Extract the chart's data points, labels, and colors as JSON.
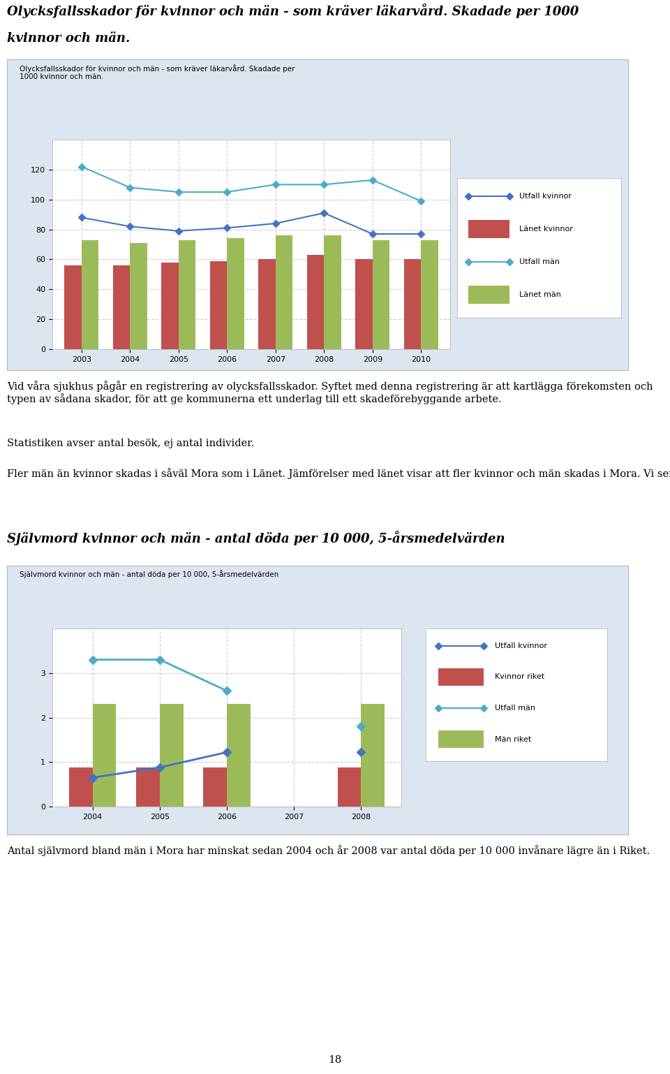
{
  "page_title1_line1": "Olycksfallsskador för kvinnor och män - som kräver läkarvård. Skadade per 1000",
  "page_title1_line2": "kvinnor och män.",
  "chart1_title": "Olycksfallsskador för kvinnor och män - som kräver läkarvård. Skadade per\n1000 kvinnor och män.",
  "chart1_years": [
    2003,
    2004,
    2005,
    2006,
    2007,
    2008,
    2009,
    2010
  ],
  "chart1_utfall_kvinnor": [
    88,
    82,
    79,
    81,
    84,
    91,
    77,
    77
  ],
  "chart1_lanet_kvinnor": [
    56,
    56,
    58,
    59,
    60,
    63,
    60,
    60
  ],
  "chart1_utfall_man": [
    122,
    108,
    105,
    105,
    110,
    110,
    113,
    99
  ],
  "chart1_lanet_man": [
    73,
    71,
    73,
    74,
    76,
    76,
    73,
    73
  ],
  "chart1_ylim": [
    0,
    140
  ],
  "chart1_yticks": [
    0,
    20,
    40,
    60,
    80,
    100,
    120
  ],
  "text1": "Vid våra sjukhus pågår en registrering av olycksfallsskador. Syftet med denna registrering är att kartlägga förekomsten och typen av sådana skador, för att ge kommunerna ett underlag till ett skadeförebyggande arbete.",
  "text2": "Statistiken avser antal besök, ej antal individer.",
  "text3": "Fler män än kvinnor skadas i såväl Mora som i Länet. Jämförelser med länet visar att fler kvinnor och män skadas i Mora. Vi ser en minskning av skador bland män i Mora.",
  "page_title2": "Självmord kvinnor och män - antal döda per 10 000, 5-årsmedelvärden",
  "chart2_title": "Självmord kvinnor och män - antal döda per 10 000, 5-årsmedelvärden",
  "chart2_years": [
    2004,
    2005,
    2006,
    2007,
    2008
  ],
  "chart2_utfall_kvinnor": [
    0.65,
    0.88,
    1.22,
    null,
    1.22
  ],
  "chart2_kvinnor_riket": [
    0.88,
    0.88,
    0.88,
    null,
    0.88
  ],
  "chart2_utfall_man": [
    3.3,
    3.3,
    2.6,
    null,
    1.8
  ],
  "chart2_man_riket": [
    2.3,
    2.3,
    2.3,
    null,
    2.3
  ],
  "chart2_ylim": [
    0,
    4
  ],
  "chart2_yticks": [
    0,
    1,
    2,
    3
  ],
  "text4": "Antal självmord bland män i Mora har minskat sedan 2004 och år 2008 var antal döda per 10 000 invånare lägre än i Riket.",
  "color_blue": "#4472C4",
  "color_cyan": "#4BACC6",
  "color_red": "#C0504D",
  "color_green": "#9BBB59",
  "legend1_labels": [
    "Utfall kvinnor",
    "Länet kvinnor",
    "Utfall män",
    "Länet män"
  ],
  "legend2_labels": [
    "Utfall kvinnor",
    "Kvinnor riket",
    "Utfall män",
    "Män riket"
  ],
  "chart_bg": "#DCE6F1",
  "plot_bg": "#FFFFFF",
  "page_num": "18"
}
